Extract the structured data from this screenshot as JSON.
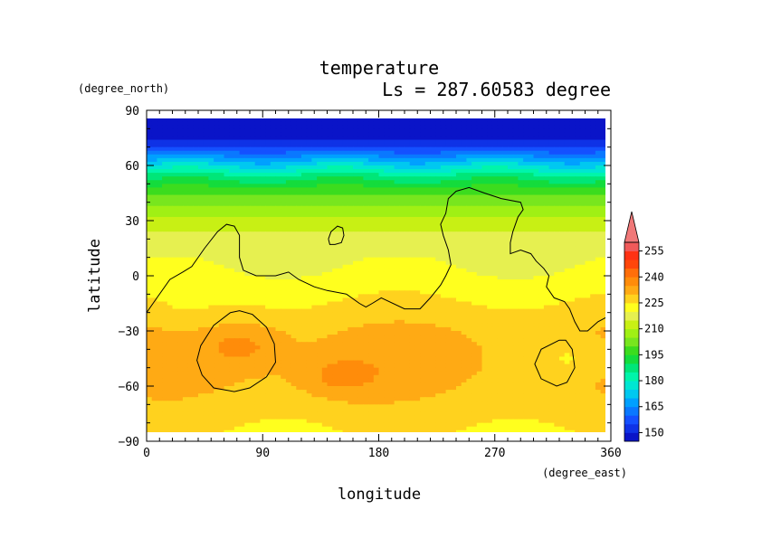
{
  "chart_data": {
    "type": "heatmap",
    "title": "temperature",
    "subtitle": "Ls = 287.60583 degree",
    "xlabel": "longitude",
    "ylabel": "latitude",
    "x_units": "(degree_east)",
    "y_units": "(degree_north)",
    "xlim": [
      0,
      360
    ],
    "ylim": [
      -90,
      90
    ],
    "x_ticks": [
      0,
      90,
      180,
      270,
      360
    ],
    "y_ticks": [
      90,
      60,
      30,
      0,
      -30,
      -60,
      -90
    ],
    "x_tick_labels": [
      "0",
      "90",
      "180",
      "270",
      "360"
    ],
    "y_tick_labels": [
      "90",
      "60",
      "30",
      "0",
      "−30",
      "−60",
      "−90"
    ],
    "colorbar": {
      "levels": [
        145,
        150,
        155,
        160,
        165,
        170,
        175,
        180,
        185,
        190,
        195,
        200,
        205,
        210,
        215,
        220,
        225,
        230,
        235,
        240,
        245,
        250,
        255,
        260
      ],
      "colors": [
        "#0a14c8",
        "#0f32e6",
        "#1450ff",
        "#0a78ff",
        "#00a0ff",
        "#00c8f0",
        "#00e6d2",
        "#00f5aa",
        "#00e678",
        "#14dc3c",
        "#3cdc1e",
        "#78e61e",
        "#a0f014",
        "#c8f014",
        "#e6f050",
        "#ffff1e",
        "#ffd21e",
        "#ffaa14",
        "#ff8c0a",
        "#ff6e0a",
        "#ff460a",
        "#ff3214",
        "#f05a5a"
      ],
      "tick_values": [
        150,
        165,
        180,
        195,
        210,
        225,
        240,
        255
      ],
      "tick_labels": [
        "150",
        "165",
        "180",
        "195",
        "210",
        "225",
        "240",
        "255"
      ],
      "extend": "max",
      "extend_color": "#f07878"
    },
    "field": {
      "description_zonal": "cold polar cap north of ~60N (<150), strong gradient 30N-60N, warm belt 0-30N (~215-225), warmest southern mid-latitudes (~230-240)",
      "zonal_profile": [
        {
          "lat": 85,
          "value": 147
        },
        {
          "lat": 75,
          "value": 149
        },
        {
          "lat": 70,
          "value": 155
        },
        {
          "lat": 65,
          "value": 165
        },
        {
          "lat": 60,
          "value": 175
        },
        {
          "lat": 55,
          "value": 185
        },
        {
          "lat": 50,
          "value": 193
        },
        {
          "lat": 45,
          "value": 199
        },
        {
          "lat": 40,
          "value": 204
        },
        {
          "lat": 35,
          "value": 208
        },
        {
          "lat": 30,
          "value": 211
        },
        {
          "lat": 25,
          "value": 214
        },
        {
          "lat": 20,
          "value": 217
        },
        {
          "lat": 10,
          "value": 219
        },
        {
          "lat": 0,
          "value": 221
        },
        {
          "lat": -10,
          "value": 224
        },
        {
          "lat": -20,
          "value": 227
        },
        {
          "lat": -30,
          "value": 230
        },
        {
          "lat": -40,
          "value": 231
        },
        {
          "lat": -50,
          "value": 231
        },
        {
          "lat": -60,
          "value": 230
        },
        {
          "lat": -70,
          "value": 228
        },
        {
          "lat": -80,
          "value": 226
        },
        {
          "lat": -85,
          "value": 225
        }
      ],
      "warm_patches": [
        {
          "lon": 75,
          "lat": -38,
          "value": 237
        },
        {
          "lon": 150,
          "lat": -55,
          "value": 237
        },
        {
          "lon": 200,
          "lat": -50,
          "value": 232
        }
      ],
      "cool_patches": [
        {
          "lon": 330,
          "lat": -45,
          "value": 225
        },
        {
          "lon": 30,
          "lat": -20,
          "value": 224
        }
      ]
    },
    "contours": [
      {
        "name": "topography-main",
        "points": [
          [
            0,
            -20
          ],
          [
            8,
            -12
          ],
          [
            18,
            -2
          ],
          [
            28,
            2
          ],
          [
            35,
            5
          ],
          [
            45,
            15
          ],
          [
            55,
            24
          ],
          [
            62,
            28
          ],
          [
            68,
            27
          ],
          [
            72,
            22
          ],
          [
            72,
            10
          ],
          [
            75,
            3
          ],
          [
            85,
            0
          ],
          [
            100,
            0
          ],
          [
            110,
            2
          ],
          [
            118,
            -2
          ],
          [
            130,
            -6
          ],
          [
            140,
            -8
          ],
          [
            155,
            -10
          ],
          [
            165,
            -15
          ],
          [
            170,
            -17
          ],
          [
            175,
            -15
          ],
          [
            182,
            -12
          ],
          [
            200,
            -18
          ],
          [
            212,
            -18
          ],
          [
            220,
            -12
          ],
          [
            228,
            -5
          ],
          [
            232,
            0
          ],
          [
            236,
            6
          ],
          [
            234,
            14
          ],
          [
            230,
            22
          ],
          [
            228,
            28
          ],
          [
            232,
            34
          ],
          [
            234,
            42
          ],
          [
            240,
            46
          ],
          [
            250,
            48
          ],
          [
            262,
            45
          ],
          [
            275,
            42
          ],
          [
            290,
            40
          ],
          [
            292,
            36
          ],
          [
            288,
            32
          ],
          [
            284,
            24
          ],
          [
            282,
            18
          ],
          [
            282,
            12
          ],
          [
            290,
            14
          ],
          [
            298,
            12
          ],
          [
            302,
            8
          ],
          [
            308,
            4
          ],
          [
            312,
            0
          ],
          [
            310,
            -6
          ],
          [
            316,
            -12
          ],
          [
            324,
            -14
          ],
          [
            328,
            -18
          ],
          [
            332,
            -25
          ],
          [
            336,
            -30
          ],
          [
            342,
            -30
          ],
          [
            350,
            -25
          ],
          [
            358,
            -22
          ],
          [
            360,
            -21
          ]
        ]
      },
      {
        "name": "topography-small-island",
        "points": [
          [
            141,
            20
          ],
          [
            143,
            24
          ],
          [
            148,
            27
          ],
          [
            152,
            26
          ],
          [
            153,
            22
          ],
          [
            151,
            18
          ],
          [
            146,
            17
          ],
          [
            142,
            17
          ],
          [
            141,
            20
          ]
        ]
      },
      {
        "name": "topography-west-basin",
        "points": [
          [
            65,
            -20
          ],
          [
            52,
            -27
          ],
          [
            42,
            -38
          ],
          [
            39,
            -46
          ],
          [
            43,
            -54
          ],
          [
            52,
            -61
          ],
          [
            68,
            -63
          ],
          [
            80,
            -61
          ],
          [
            93,
            -55
          ],
          [
            100,
            -47
          ],
          [
            99,
            -37
          ],
          [
            93,
            -28
          ],
          [
            82,
            -21
          ],
          [
            72,
            -19
          ],
          [
            65,
            -20
          ]
        ]
      },
      {
        "name": "topography-east-basin",
        "points": [
          [
            320,
            -35
          ],
          [
            306,
            -40
          ],
          [
            301,
            -48
          ],
          [
            306,
            -56
          ],
          [
            318,
            -60
          ],
          [
            326,
            -58
          ],
          [
            332,
            -50
          ],
          [
            330,
            -40
          ],
          [
            325,
            -35
          ],
          [
            320,
            -35
          ]
        ]
      }
    ]
  }
}
